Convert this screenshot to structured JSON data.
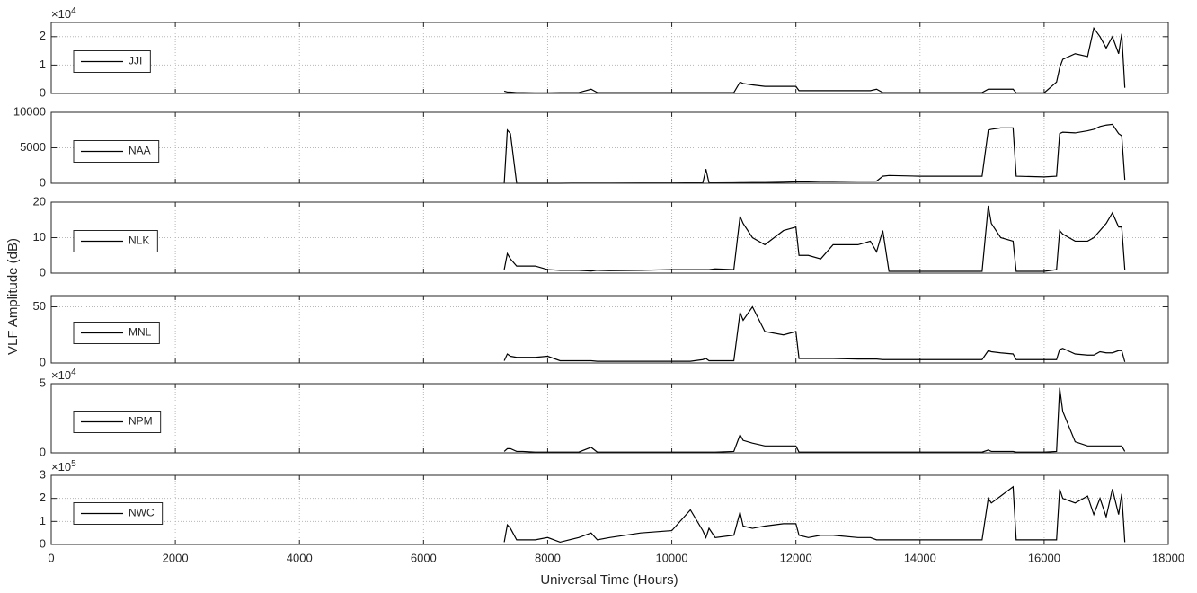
{
  "chart_data": {
    "type": "line",
    "x_label": "Universal Time (Hours)",
    "y_label": "VLF Amplitude (dB)",
    "xlim": [
      0,
      18000
    ],
    "xticks": [
      0,
      2000,
      4000,
      6000,
      8000,
      10000,
      12000,
      14000,
      16000,
      18000
    ],
    "grid": true,
    "x": [
      7300,
      7350,
      7400,
      7500,
      7600,
      7800,
      8000,
      8200,
      8500,
      8700,
      8800,
      9000,
      9500,
      10000,
      10300,
      10500,
      10550,
      10600,
      10700,
      11000,
      11100,
      11150,
      11300,
      11500,
      11800,
      12000,
      12050,
      12200,
      12400,
      12600,
      13000,
      13200,
      13300,
      13400,
      13500,
      14000,
      14500,
      15000,
      15100,
      15150,
      15300,
      15500,
      15550,
      16000,
      16200,
      16250,
      16300,
      16500,
      16700,
      16800,
      16900,
      17000,
      17100,
      17200,
      17250,
      17300
    ],
    "panels": [
      {
        "ylim": [
          0,
          2.5
        ],
        "yticks": [
          0,
          1,
          2
        ],
        "y_multiplier": {
          "base": "×10",
          "exponent": 4
        },
        "legend": "west",
        "series": [
          {
            "name": "JJI",
            "color": "#000000",
            "values": [
              0.08,
              0.05,
              0.05,
              0.03,
              0.03,
              0.02,
              0.02,
              0.03,
              0.03,
              0.15,
              0.03,
              0.03,
              0.03,
              0.03,
              0.03,
              0.03,
              0.03,
              0.03,
              0.03,
              0.03,
              0.4,
              0.35,
              0.3,
              0.25,
              0.25,
              0.25,
              0.1,
              0.1,
              0.1,
              0.1,
              0.1,
              0.1,
              0.15,
              0.03,
              0.03,
              0.03,
              0.03,
              0.03,
              0.15,
              0.15,
              0.15,
              0.15,
              0.02,
              0.02,
              0.4,
              0.9,
              1.2,
              1.4,
              1.3,
              2.3,
              2.0,
              1.6,
              2.0,
              1.4,
              2.1,
              0.2
            ]
          }
        ]
      },
      {
        "ylim": [
          0,
          10000
        ],
        "yticks": [
          0,
          5000,
          10000
        ],
        "legend": "west",
        "series": [
          {
            "name": "NAA",
            "color": "#000000",
            "values": [
              0,
              7500,
              7000,
              0,
              0,
              0,
              0,
              0,
              20,
              20,
              20,
              20,
              30,
              40,
              50,
              50,
              2000,
              50,
              50,
              60,
              80,
              80,
              100,
              100,
              150,
              200,
              200,
              200,
              250,
              250,
              300,
              300,
              300,
              1000,
              1100,
              1000,
              1000,
              1000,
              7500,
              7600,
              7800,
              7800,
              1000,
              900,
              1000,
              7000,
              7200,
              7100,
              7400,
              7600,
              8000,
              8200,
              8300,
              7000,
              6700,
              500
            ]
          }
        ]
      },
      {
        "ylim": [
          0,
          20
        ],
        "yticks": [
          0,
          10,
          20
        ],
        "legend": "west",
        "series": [
          {
            "name": "NLK",
            "color": "#000000",
            "values": [
              1,
              5.5,
              4,
              2,
              2,
              2,
              1,
              0.8,
              0.8,
              0.6,
              0.8,
              0.7,
              0.8,
              1,
              1,
              1,
              1,
              1,
              1.2,
              1,
              16,
              14,
              10,
              8,
              12,
              13,
              5,
              5,
              4,
              8,
              8,
              9,
              6,
              12,
              0.5,
              0.5,
              0.5,
              0.5,
              19,
              14,
              10,
              9,
              0.5,
              0.5,
              1,
              12,
              11,
              9,
              9,
              10,
              12,
              14,
              17,
              13,
              13,
              1
            ]
          }
        ]
      },
      {
        "ylim": [
          0,
          60
        ],
        "yticks": [
          0,
          50
        ],
        "legend": "west",
        "series": [
          {
            "name": "MNL",
            "color": "#000000",
            "values": [
              2,
              8,
              6,
              5,
              5,
              5,
              6,
              2,
              2,
              2,
              1.5,
              1.5,
              1.5,
              1.5,
              1.5,
              3,
              4,
              2,
              2,
              2,
              45,
              38,
              50,
              28,
              25,
              28,
              4,
              4,
              4,
              4,
              3.5,
              3.5,
              3.5,
              3,
              3,
              3,
              3,
              3,
              11,
              10,
              9,
              8,
              3,
              3,
              3,
              12,
              13,
              8,
              7,
              7,
              10,
              9,
              9,
              11,
              11,
              1
            ]
          }
        ]
      },
      {
        "ylim": [
          0,
          5
        ],
        "yticks": [
          0,
          5
        ],
        "y_multiplier": {
          "base": "×10",
          "exponent": 4
        },
        "legend": "west",
        "series": [
          {
            "name": "NPM",
            "color": "#000000",
            "values": [
              0.1,
              0.3,
              0.3,
              0.1,
              0.1,
              0.05,
              0.05,
              0.05,
              0.05,
              0.4,
              0.05,
              0.05,
              0.05,
              0.05,
              0.05,
              0.05,
              0.05,
              0.05,
              0.05,
              0.1,
              1.3,
              0.9,
              0.7,
              0.5,
              0.5,
              0.5,
              0.05,
              0.05,
              0.05,
              0.05,
              0.05,
              0.05,
              0.05,
              0.05,
              0.05,
              0.05,
              0.05,
              0.05,
              0.2,
              0.1,
              0.1,
              0.1,
              0.05,
              0.05,
              0.1,
              4.7,
              3,
              0.8,
              0.5,
              0.5,
              0.5,
              0.5,
              0.5,
              0.5,
              0.5,
              0.1
            ]
          }
        ]
      },
      {
        "ylim": [
          0,
          3
        ],
        "yticks": [
          0,
          1,
          2,
          3
        ],
        "y_multiplier": {
          "base": "×10",
          "exponent": 5
        },
        "legend": "west",
        "series": [
          {
            "name": "NWC",
            "color": "#000000",
            "values": [
              0.1,
              0.85,
              0.7,
              0.2,
              0.2,
              0.2,
              0.3,
              0.1,
              0.3,
              0.5,
              0.2,
              0.3,
              0.5,
              0.6,
              1.5,
              0.6,
              0.3,
              0.7,
              0.3,
              0.4,
              1.4,
              0.8,
              0.7,
              0.8,
              0.9,
              0.9,
              0.4,
              0.3,
              0.4,
              0.4,
              0.3,
              0.3,
              0.2,
              0.2,
              0.2,
              0.2,
              0.2,
              0.2,
              2.0,
              1.8,
              2.1,
              2.5,
              0.2,
              0.2,
              0.2,
              2.4,
              2.0,
              1.8,
              2.1,
              1.3,
              2.0,
              1.2,
              2.4,
              1.3,
              2.2,
              0.1
            ]
          }
        ]
      }
    ]
  }
}
